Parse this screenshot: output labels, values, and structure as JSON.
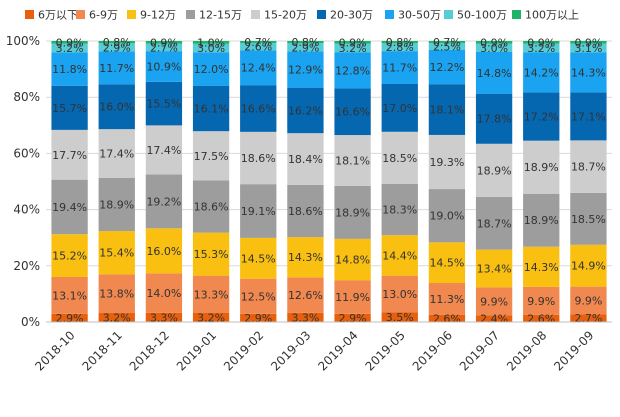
{
  "chart_data": {
    "type": "bar",
    "stacked": true,
    "normalized": true,
    "title": "",
    "xlabel": "",
    "ylabel": "",
    "ylim": [
      0,
      100
    ],
    "yticks": [
      "0%",
      "20%",
      "40%",
      "60%",
      "80%",
      "100%"
    ],
    "legend_position": "top",
    "categories": [
      "2018-10",
      "2018-11",
      "2018-12",
      "2019-01",
      "2019-02",
      "2019-03",
      "2019-04",
      "2019-05",
      "2019-06",
      "2019-07",
      "2019-08",
      "2019-09"
    ],
    "series": [
      {
        "name": "6万以下",
        "color": "#E8600C",
        "values": [
          2.9,
          3.2,
          3.3,
          3.2,
          2.9,
          3.3,
          2.9,
          3.5,
          2.6,
          2.4,
          2.6,
          2.7
        ]
      },
      {
        "name": "6-9万",
        "color": "#F0884F",
        "values": [
          13.1,
          13.8,
          14.0,
          13.3,
          12.5,
          12.6,
          11.9,
          13.0,
          11.3,
          9.9,
          9.9,
          9.9
        ]
      },
      {
        "name": "9-12万",
        "color": "#FAC011",
        "values": [
          15.2,
          15.4,
          16.0,
          15.3,
          14.5,
          14.3,
          14.8,
          14.4,
          14.5,
          13.4,
          14.3,
          14.9
        ]
      },
      {
        "name": "12-15万",
        "color": "#9D9D9D",
        "values": [
          19.4,
          18.9,
          19.2,
          18.6,
          19.1,
          18.6,
          18.9,
          18.3,
          19.0,
          18.7,
          18.9,
          18.5
        ]
      },
      {
        "name": "15-20万",
        "color": "#CDCDCD",
        "values": [
          17.7,
          17.4,
          17.4,
          17.5,
          18.6,
          18.4,
          18.1,
          18.5,
          19.3,
          18.9,
          18.9,
          18.7
        ]
      },
      {
        "name": "20-30万",
        "color": "#0667B1",
        "values": [
          15.7,
          16.0,
          15.5,
          16.1,
          16.6,
          16.2,
          16.6,
          17.0,
          18.1,
          17.8,
          17.2,
          17.1
        ]
      },
      {
        "name": "30-50万",
        "color": "#1AA3F0",
        "values": [
          11.8,
          11.7,
          10.9,
          12.0,
          12.4,
          12.9,
          12.8,
          11.7,
          12.2,
          14.8,
          14.2,
          14.3
        ]
      },
      {
        "name": "50-100万",
        "color": "#56CCD6",
        "values": [
          3.2,
          2.9,
          2.7,
          3.0,
          2.6,
          2.9,
          3.2,
          2.8,
          2.5,
          3.0,
          3.2,
          3.1
        ]
      },
      {
        "name": "100万以上",
        "color": "#1FB36A",
        "values": [
          0.9,
          0.8,
          0.9,
          1.0,
          0.7,
          0.8,
          0.9,
          0.8,
          0.7,
          0.9,
          0.9,
          0.9
        ]
      }
    ]
  }
}
